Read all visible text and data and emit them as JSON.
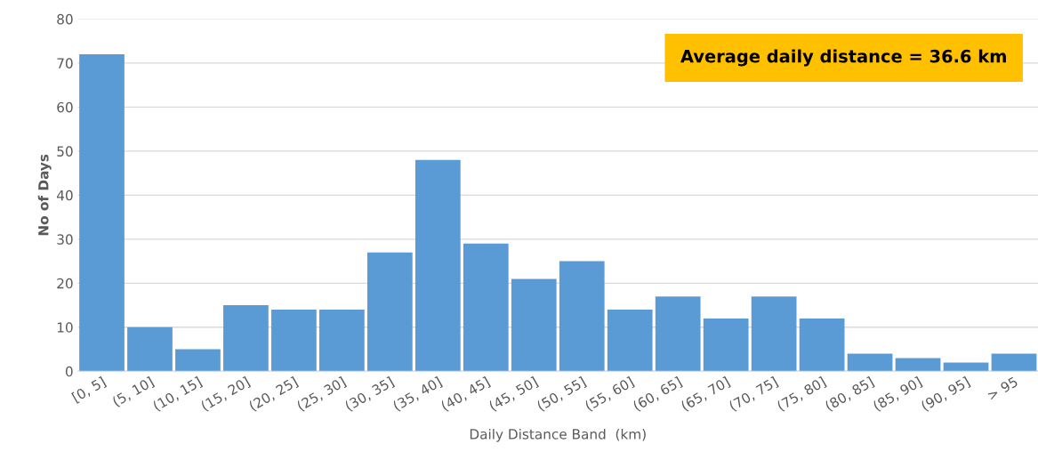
{
  "chart_data": {
    "type": "bar",
    "xlabel": "Daily Distance Band  (km)",
    "ylabel": "No of Days",
    "categories": [
      "[0, 5]",
      "(5, 10]",
      "(10, 15]",
      "(15, 20]",
      "(20, 25]",
      "(25, 30]",
      "(30, 35]",
      "(35, 40]",
      "(40, 45]",
      "(45, 50]",
      "(50, 55]",
      "(55, 60]",
      "(60, 65]",
      "(65, 70]",
      "(70, 75]",
      "(75, 80]",
      "(80, 85]",
      "(85, 90]",
      "(90, 95]",
      "> 95"
    ],
    "values": [
      72,
      10,
      5,
      15,
      14,
      14,
      27,
      48,
      29,
      21,
      25,
      14,
      17,
      12,
      17,
      12,
      4,
      3,
      2,
      4
    ],
    "color": "#5b9bd5",
    "ylim": [
      0,
      80
    ],
    "yticks": [
      0,
      10,
      20,
      30,
      40,
      50,
      60,
      70,
      80
    ],
    "grid": "y",
    "annotations": [
      "Average daily distance = 36.6 km"
    ]
  }
}
